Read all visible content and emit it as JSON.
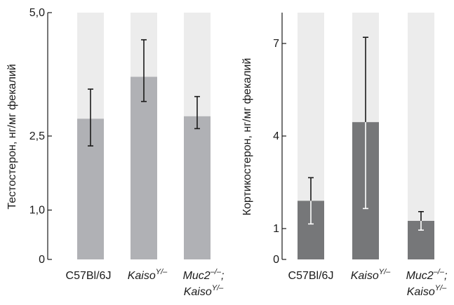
{
  "chart_data": [
    {
      "type": "bar",
      "ylabel": "Тестостерон, нг/мг фекалий",
      "ylim": [
        0,
        5.0
      ],
      "yticks": [
        "0",
        "1,0",
        "2,5",
        "5,0"
      ],
      "yticks_values": [
        0,
        1.0,
        2.5,
        5.0
      ],
      "categories": [
        {
          "main": "C57Bl/6J",
          "sup": "",
          "line2": "",
          "line2_sup": ""
        },
        {
          "main": "Kaiso",
          "sup": "Y/–",
          "line2": "",
          "line2_sup": ""
        },
        {
          "main": "Muc2",
          "sup": "–/–",
          "suffix": ";",
          "line2": "Kaiso",
          "line2_sup": "Y/–"
        }
      ],
      "values": [
        2.85,
        3.7,
        2.9
      ],
      "error_low": [
        2.3,
        3.2,
        2.65
      ],
      "error_high": [
        3.45,
        4.45,
        3.3
      ],
      "colors": {
        "bar": "#b0b1b5",
        "background_bar": "#ececec",
        "error": "#1a1a1a"
      }
    },
    {
      "type": "bar",
      "ylabel": "Кортикостерон, нг/мг фекалий",
      "ylim": [
        0,
        8.0
      ],
      "yticks": [
        "0",
        "1",
        "4",
        "7"
      ],
      "yticks_values": [
        0,
        1,
        4,
        7
      ],
      "categories": [
        {
          "main": "C57Bl/6J",
          "sup": "",
          "line2": "",
          "line2_sup": ""
        },
        {
          "main": "Kaiso",
          "sup": "Y/–",
          "line2": "",
          "line2_sup": ""
        },
        {
          "main": "Muc2",
          "sup": "–/–",
          "suffix": ";",
          "line2": "Kaiso",
          "line2_sup": "Y/–"
        }
      ],
      "values": [
        1.9,
        4.45,
        1.25
      ],
      "error_low": [
        1.15,
        1.65,
        0.95
      ],
      "error_high": [
        2.65,
        7.2,
        1.55
      ],
      "colors": {
        "bar": "#767779",
        "background_bar": "#ececec",
        "error_top": "#1a1a1a",
        "error_inside": "#ffffff"
      }
    }
  ]
}
